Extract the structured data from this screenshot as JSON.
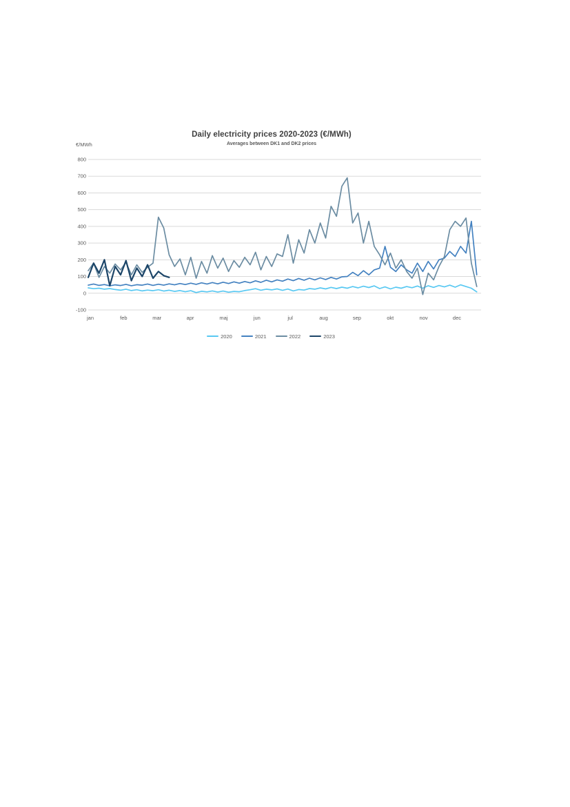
{
  "chart_data": {
    "type": "line",
    "title": "Daily electricity prices 2020-2023 (€/MWh)",
    "subtitle": "Averages between DK1 and DK2 prices",
    "y_axis_unit": "€/MWh",
    "ylim": [
      -100,
      800
    ],
    "y_ticks": [
      800,
      700,
      600,
      500,
      400,
      300,
      200,
      100,
      0,
      -100
    ],
    "x_tick_labels": [
      "jan",
      "feb",
      "mar",
      "apr",
      "maj",
      "jun",
      "jul",
      "aug",
      "sep",
      "okt",
      "nov",
      "dec"
    ],
    "x_unit": "day of year (values sampled every 5 days, estimated from plot)",
    "grid": true,
    "grid_color": "#d9d9d9",
    "text_color": "#595959",
    "title_color": "#3f3f3f",
    "legend_position": "bottom",
    "series": [
      {
        "name": "2020",
        "color": "#58C8F2",
        "start_day": 1,
        "interval_days": 5,
        "values": [
          32,
          27,
          30,
          24,
          28,
          22,
          18,
          24,
          16,
          21,
          14,
          19,
          15,
          21,
          13,
          18,
          11,
          16,
          9,
          15,
          4,
          12,
          8,
          14,
          7,
          13,
          6,
          11,
          9,
          16,
          21,
          27,
          18,
          24,
          20,
          26,
          17,
          25,
          14,
          22,
          19,
          28,
          24,
          32,
          26,
          35,
          28,
          36,
          30,
          40,
          32,
          42,
          34,
          44,
          28,
          38,
          26,
          36,
          30,
          40,
          33,
          43,
          30,
          45,
          35,
          46,
          38,
          48,
          36,
          50,
          40,
          30,
          8
        ]
      },
      {
        "name": "2021",
        "color": "#4381C0",
        "start_day": 1,
        "interval_days": 5,
        "values": [
          48,
          55,
          47,
          52,
          44,
          50,
          46,
          53,
          45,
          51,
          48,
          55,
          47,
          54,
          48,
          56,
          50,
          58,
          52,
          60,
          53,
          62,
          55,
          64,
          56,
          66,
          58,
          68,
          60,
          70,
          62,
          74,
          65,
          78,
          68,
          80,
          72,
          85,
          75,
          88,
          78,
          90,
          80,
          92,
          82,
          95,
          85,
          98,
          100,
          125,
          105,
          135,
          110,
          140,
          150,
          280,
          155,
          130,
          170,
          140,
          120,
          180,
          130,
          190,
          145,
          200,
          210,
          250,
          220,
          280,
          240,
          430,
          110
        ]
      },
      {
        "name": "2022",
        "color": "#6B8CA2",
        "start_day": 1,
        "interval_days": 5,
        "values": [
          135,
          180,
          95,
          160,
          120,
          175,
          140,
          185,
          110,
          170,
          125,
          155,
          180,
          455,
          390,
          230,
          160,
          205,
          110,
          215,
          90,
          190,
          120,
          225,
          150,
          210,
          130,
          195,
          155,
          215,
          170,
          245,
          140,
          220,
          160,
          235,
          220,
          350,
          180,
          320,
          240,
          380,
          300,
          420,
          330,
          520,
          460,
          640,
          690,
          420,
          480,
          300,
          430,
          280,
          230,
          170,
          240,
          150,
          200,
          130,
          90,
          150,
          -8,
          120,
          80,
          160,
          220,
          380,
          430,
          400,
          450,
          180,
          40
        ]
      },
      {
        "name": "2023",
        "color": "#1C4568",
        "start_day": 1,
        "interval_days": 5,
        "values": [
          95,
          180,
          120,
          200,
          45,
          160,
          110,
          195,
          75,
          150,
          100,
          170,
          90,
          130,
          105,
          95
        ]
      }
    ]
  }
}
